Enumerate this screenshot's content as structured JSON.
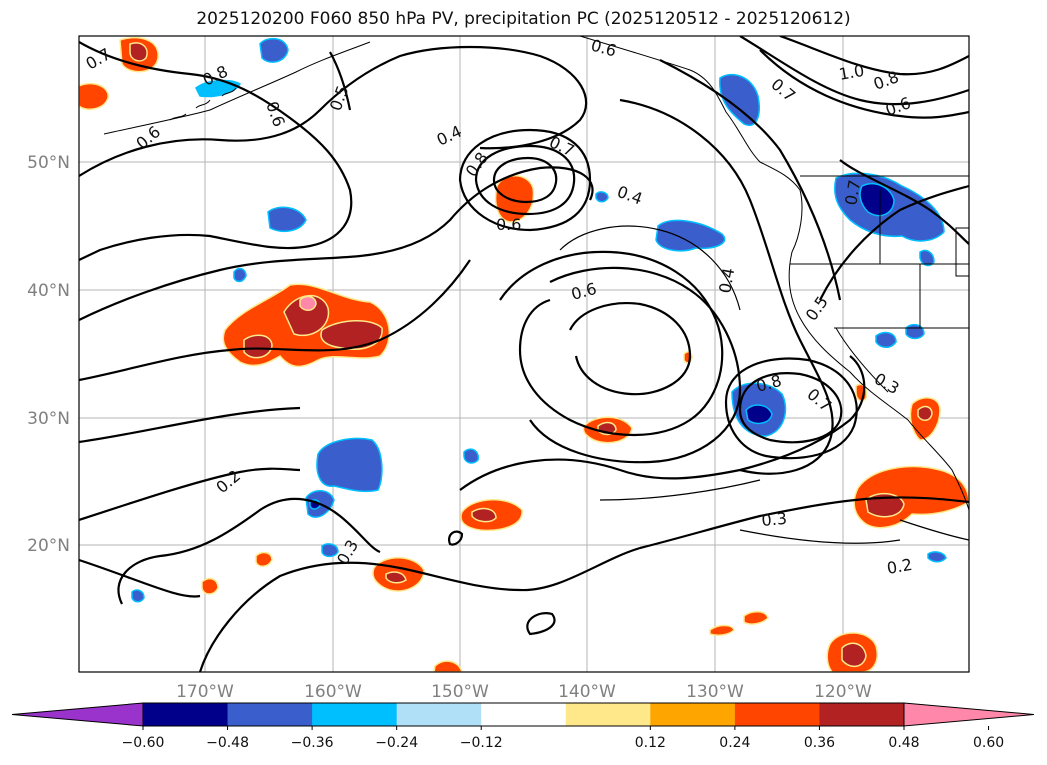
{
  "title": "2025120200 F060 850 hPa PV, precipitation PC (2025120512 - 2025120612)",
  "lat_labels": [
    "50°N",
    "40°N",
    "30°N",
    "20°N"
  ],
  "lon_labels": [
    "170°W",
    "160°W",
    "150°W",
    "140°W",
    "130°W",
    "120°W"
  ],
  "contour_labels": {
    "l01": "0.7",
    "l02": "0.8",
    "l03": "0.6",
    "l04": "0.6",
    "l05": "0.5",
    "l06": "0.4",
    "l07": "0.8",
    "l08": "0.7",
    "l09": "0.6",
    "l10": "0.4",
    "l11": "0.6",
    "l12": "0.4",
    "l13": "1.0",
    "l14": "0.8",
    "l15": "0.6",
    "l16": "0.7",
    "l17": "0.6",
    "l18": "0.5",
    "l19": "0.8",
    "l20": "0.7",
    "l21": "0.3",
    "l22": "0.3",
    "l23": "0.2",
    "l24": "0.2",
    "l25": "0.3",
    "l26": "0.7"
  },
  "colorbar": {
    "colors": [
      "#9933cc",
      "#00008b",
      "#3a5fcd",
      "#00bfff",
      "#b0e0f8",
      "#ffffff",
      "#ffe88a",
      "#ffa500",
      "#ff4500",
      "#b22222",
      "#ff88aa"
    ],
    "ticks": [
      "−0.60",
      "−0.48",
      "−0.36",
      "−0.24",
      "−0.12",
      "0.12",
      "0.24",
      "0.36",
      "0.48",
      "0.60"
    ]
  }
}
